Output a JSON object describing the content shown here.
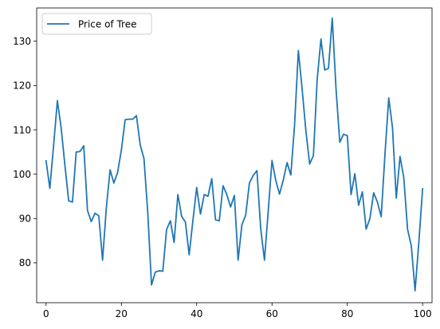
{
  "chart_data": {
    "type": "line",
    "grid": false,
    "legend_position": "top-left",
    "xlim": [
      -2.5,
      102.5
    ],
    "ylim": [
      71,
      137.5
    ],
    "xticks": [
      0,
      20,
      40,
      60,
      80,
      100
    ],
    "yticks": [
      80,
      90,
      100,
      110,
      120,
      130
    ],
    "series": [
      {
        "name": "Price of Tree",
        "color": "#1f77b4",
        "x": [
          0,
          1,
          2,
          3,
          4,
          5,
          6,
          7,
          8,
          9,
          10,
          11,
          12,
          13,
          14,
          15,
          16,
          17,
          18,
          19,
          20,
          21,
          22,
          23,
          24,
          25,
          26,
          27,
          28,
          29,
          30,
          31,
          32,
          33,
          34,
          35,
          36,
          37,
          38,
          39,
          40,
          41,
          42,
          43,
          44,
          45,
          46,
          47,
          48,
          49,
          50,
          51,
          52,
          53,
          54,
          55,
          56,
          57,
          58,
          59,
          60,
          61,
          62,
          63,
          64,
          65,
          66,
          67,
          68,
          69,
          70,
          71,
          72,
          73,
          74,
          75,
          76,
          77,
          78,
          79,
          80,
          81,
          82,
          83,
          84,
          85,
          86,
          87,
          88,
          89,
          90,
          91,
          92,
          93,
          94,
          95,
          96,
          97,
          98,
          99,
          100
        ],
        "y": [
          103,
          96.8,
          106.5,
          116.6,
          110.5,
          102,
          94,
          93.7,
          105,
          105.1,
          106.4,
          91.8,
          89.3,
          91.2,
          90.6,
          80.6,
          92.4,
          101,
          98,
          100.4,
          105.5,
          112.3,
          112.4,
          112.4,
          113.2,
          106.6,
          103.5,
          91.4,
          75,
          77.9,
          78.2,
          78.1,
          87.5,
          89.5,
          84.6,
          95.4,
          90.5,
          89.2,
          81.8,
          89.6,
          97,
          91,
          95.4,
          95,
          99,
          89.7,
          89.5,
          97.4,
          95.4,
          92.6,
          95.2,
          80.6,
          88.6,
          90.7,
          98,
          99.7,
          100.8,
          87.7,
          80.6,
          91.7,
          103.1,
          98.6,
          95.5,
          98.7,
          102.6,
          99.8,
          111.2,
          127.9,
          119.2,
          109.8,
          102.3,
          104.2,
          121.4,
          130.5,
          123.5,
          123.9,
          135.2,
          119.3,
          107.2,
          109,
          108.7,
          95.4,
          100.1,
          93,
          96,
          87.6,
          90,
          95.8,
          93.7,
          90.4,
          104.5,
          117.2,
          110.5,
          94.6,
          104,
          99.2,
          87.6,
          83.8,
          73.7,
          84.7,
          96.7
        ]
      }
    ]
  }
}
